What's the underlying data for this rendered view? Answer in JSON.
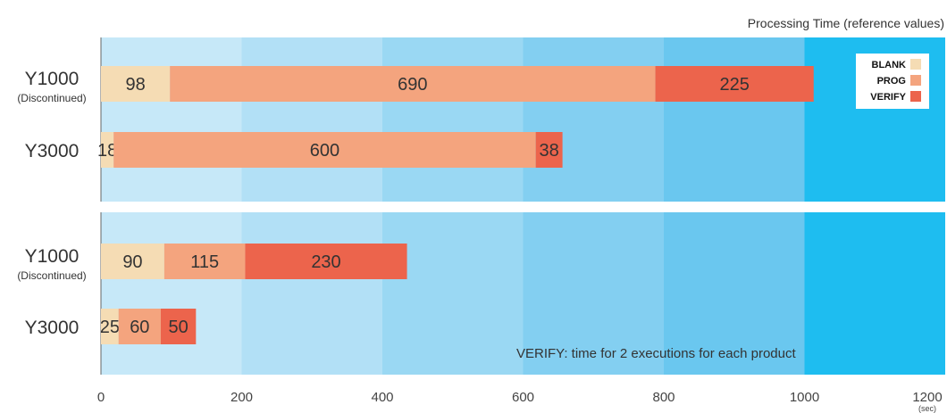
{
  "chart_data": {
    "type": "bar",
    "orientation": "horizontal",
    "stacked": true,
    "title": "Processing Time (reference values)",
    "unit": "(sec)",
    "xlim": [
      0,
      1200
    ],
    "ticks": [
      0,
      200,
      400,
      600,
      800,
      1000,
      1200
    ],
    "legend_position": "top-right",
    "series": [
      {
        "name": "BLANK",
        "color": "#f5dcb4"
      },
      {
        "name": "PROG",
        "color": "#f4a47e"
      },
      {
        "name": "VERIFY",
        "color": "#ec644c"
      }
    ],
    "groups": [
      {
        "rows": [
          {
            "category": "Y1000",
            "note": "(Discontinued)",
            "values": [
              98,
              690,
              225
            ]
          },
          {
            "category": "Y3000",
            "note": "",
            "values": [
              18,
              600,
              38
            ]
          }
        ]
      },
      {
        "rows": [
          {
            "category": "Y1000",
            "note": "(Discontinued)",
            "values": [
              90,
              115,
              230
            ]
          },
          {
            "category": "Y3000",
            "note": "",
            "values": [
              25,
              60,
              50
            ]
          }
        ]
      }
    ],
    "annotation": "VERIFY:  time for 2 executions for each product",
    "band_colors": [
      "#c6e8f8",
      "#b2e0f6",
      "#9ad8f3",
      "#83cff1",
      "#6ac7ef",
      "#1ebdf0"
    ]
  }
}
